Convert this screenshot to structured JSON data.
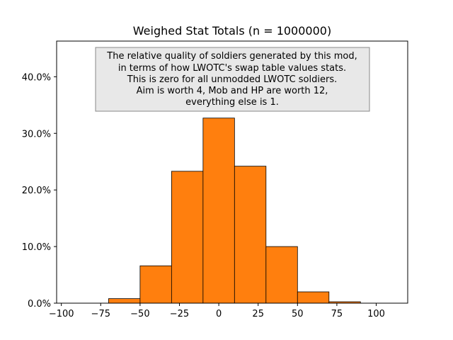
{
  "chart_data": {
    "type": "bar",
    "title": "Weighed Stat Totals (n = 1000000)",
    "xlabel": "",
    "ylabel": "",
    "bar_color": "#ff7f0e",
    "bar_edge_color": "#000000",
    "bins": [
      {
        "start": -70,
        "end": -50,
        "value": 0.8
      },
      {
        "start": -50,
        "end": -30,
        "value": 6.6
      },
      {
        "start": -30,
        "end": -10,
        "value": 23.3
      },
      {
        "start": -10,
        "end": 10,
        "value": 32.7
      },
      {
        "start": 10,
        "end": 30,
        "value": 24.2
      },
      {
        "start": 30,
        "end": 50,
        "value": 10.0
      },
      {
        "start": 50,
        "end": 70,
        "value": 2.0
      },
      {
        "start": 70,
        "end": 90,
        "value": 0.25
      }
    ],
    "xlim": [
      -103,
      120
    ],
    "ylim": [
      0,
      46.3
    ],
    "xticks": [
      -100,
      -75,
      -50,
      -25,
      0,
      25,
      50,
      75,
      100
    ],
    "xtick_labels": [
      "−100",
      "−75",
      "−50",
      "−25",
      "0",
      "25",
      "50",
      "75",
      "100"
    ],
    "yticks": [
      0,
      10,
      20,
      30,
      40
    ],
    "ytick_labels": [
      "0.0%",
      "10.0%",
      "20.0%",
      "30.0%",
      "40.0%"
    ],
    "grid": false,
    "annotation": {
      "lines": [
        "The relative quality of soldiers generated by this mod,",
        "in terms of how LWOTC's swap table values stats.",
        "This is zero for all unmodded LWOTC soldiers.",
        "Aim is worth 4, Mob and HP are worth 12,",
        "everything else is 1."
      ],
      "background": "#e8e8e8",
      "border": "#888888"
    }
  }
}
